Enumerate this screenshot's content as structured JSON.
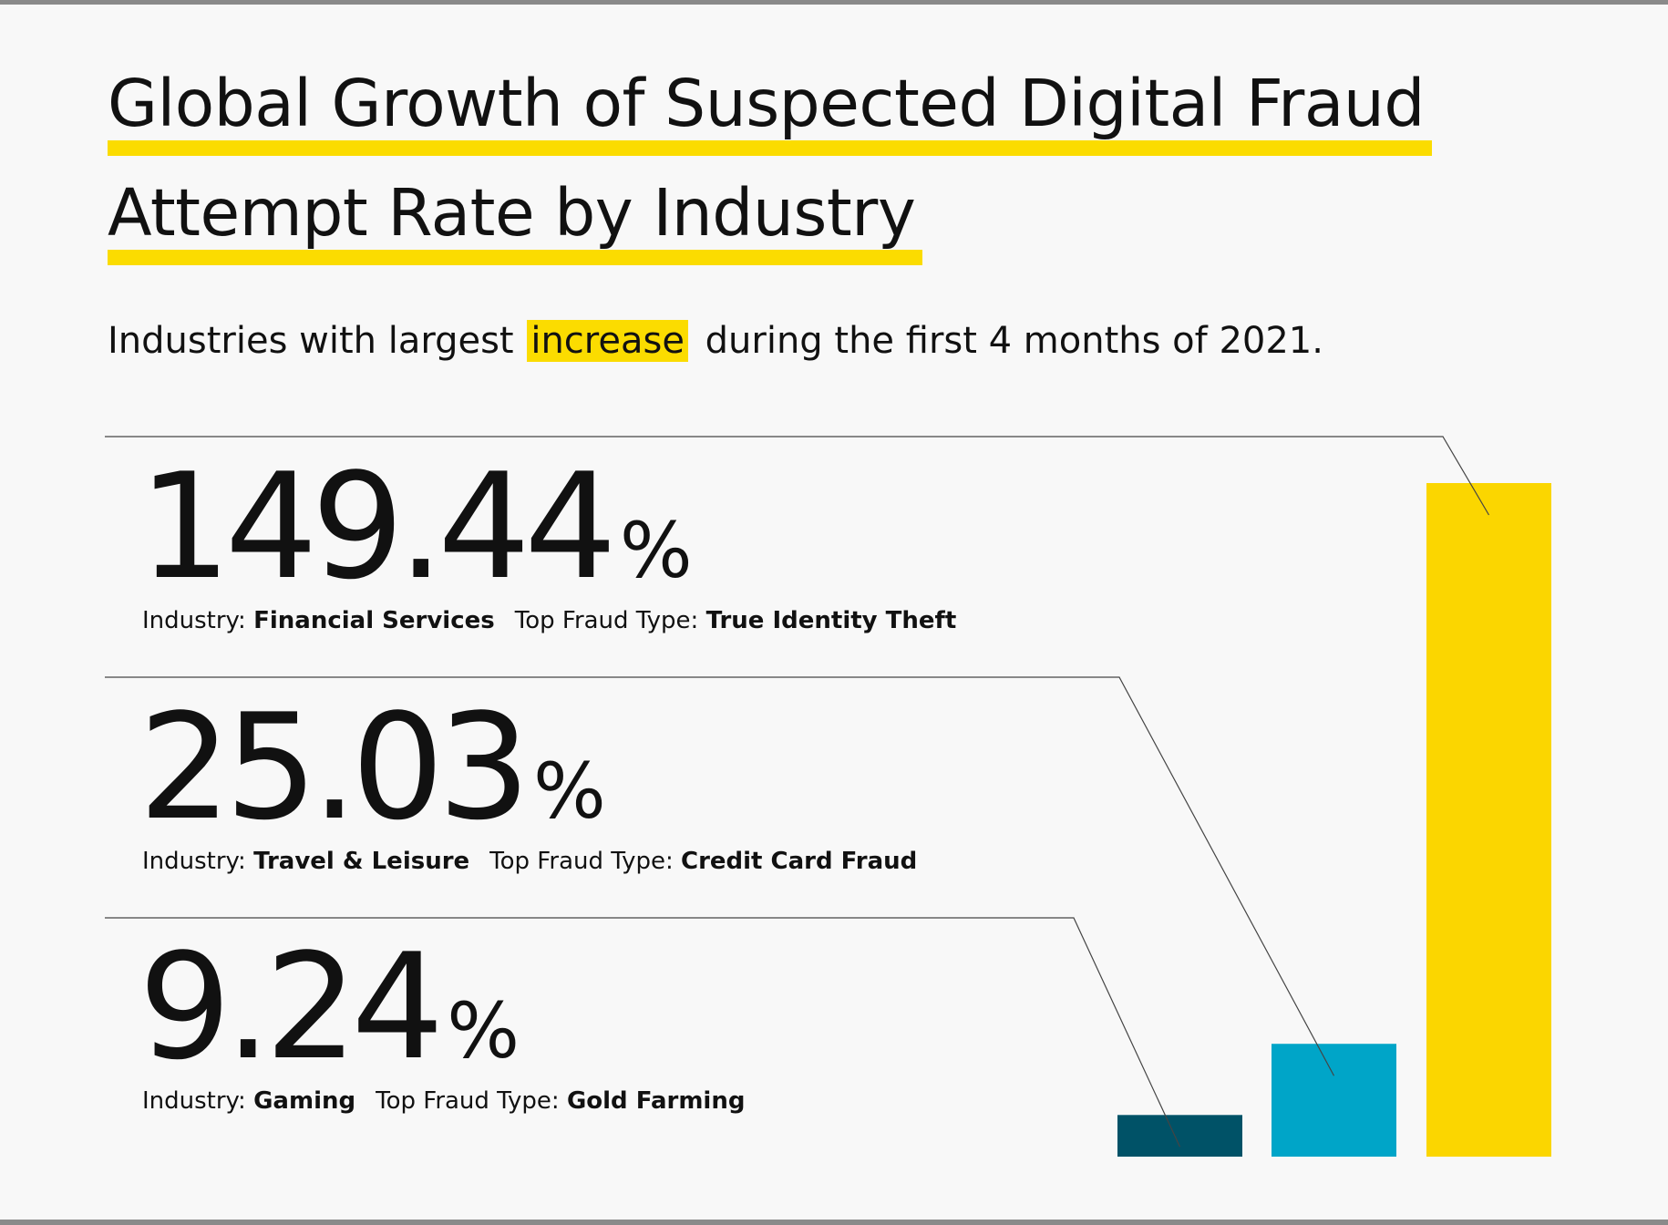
{
  "title": {
    "line1": "Global Growth of  Suspected Digital Fraud",
    "line2": "Attempt Rate by Industry"
  },
  "subtitle": {
    "before": "Industries with largest ",
    "highlight": "increase",
    "after": " during the first 4 months of 2021."
  },
  "labels": {
    "industry": "Industry:",
    "fraud_type": "Top Fraud Type:",
    "percent_sign": "%"
  },
  "stats": [
    {
      "value": "149.44",
      "industry": "Financial Services",
      "fraud_type": "True Identity Theft"
    },
    {
      "value": "25.03",
      "industry": "Travel & Leisure",
      "fraud_type": "Credit Card Fraud"
    },
    {
      "value": "9.24",
      "industry": "Gaming",
      "fraud_type": "Gold Farming"
    }
  ],
  "colors": {
    "accent": "#fbdc00",
    "gaming": "#005267",
    "travel": "#00a5c8",
    "financial": "#fbd600",
    "leader": "#444444"
  },
  "chart_data": {
    "type": "bar",
    "title": "Global Growth of Suspected Digital Fraud Attempt Rate by Industry",
    "categories": [
      "Gaming",
      "Travel & Leisure",
      "Financial Services"
    ],
    "values": [
      9.24,
      25.03,
      149.44
    ],
    "unit": "%",
    "xlabel": "",
    "ylabel": "",
    "ylim": [
      0,
      149.44
    ],
    "grid": false,
    "legend": "none",
    "colors": [
      "#005267",
      "#00a5c8",
      "#fbd600"
    ]
  }
}
